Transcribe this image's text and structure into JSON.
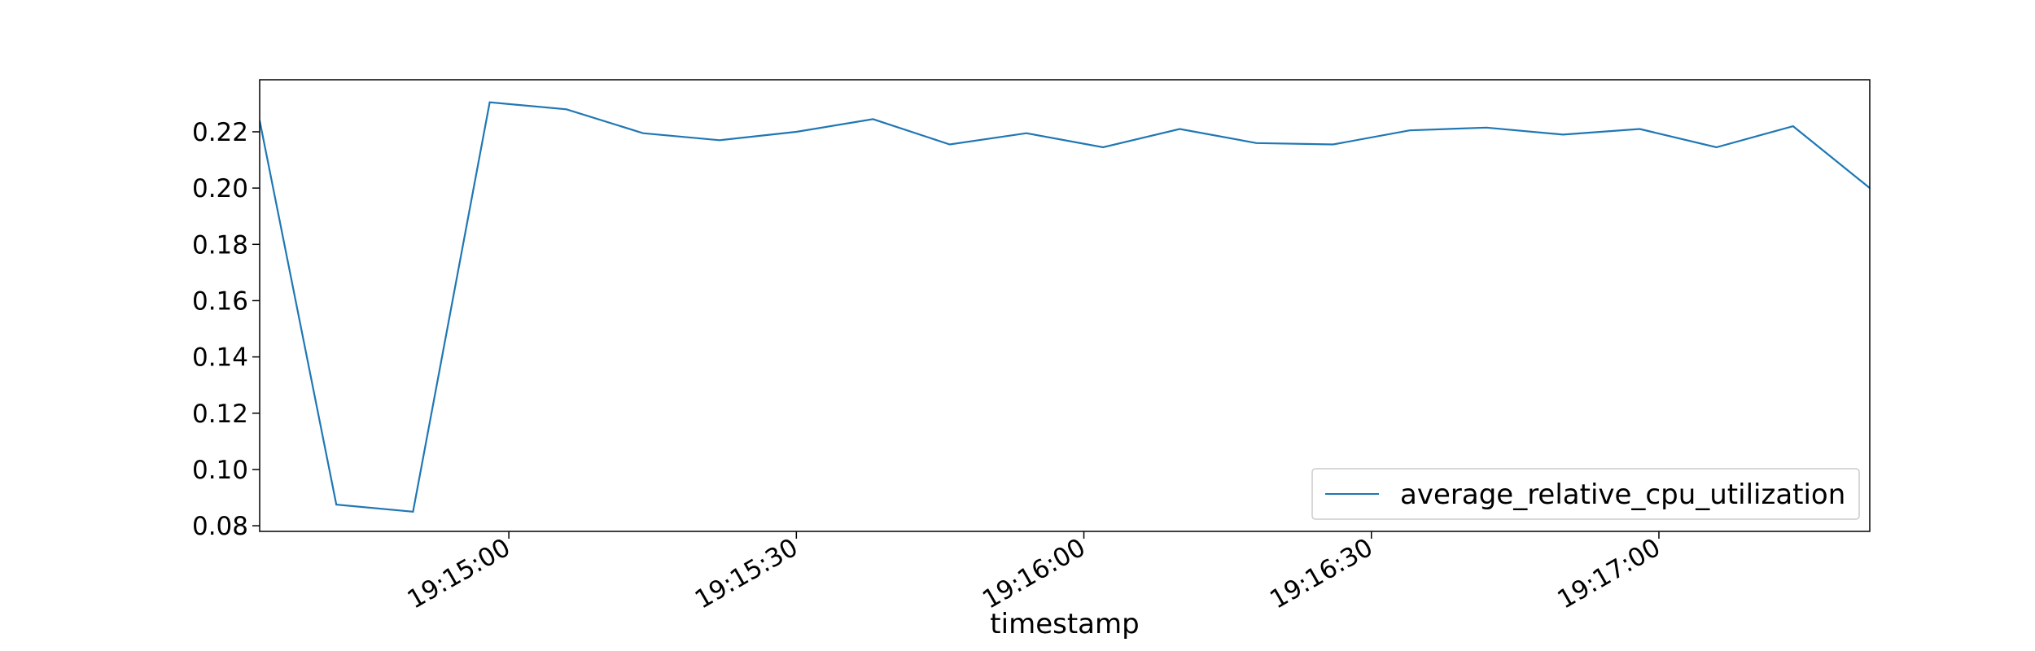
{
  "chart_data": {
    "type": "line",
    "xlabel": "timestamp",
    "ylabel": "",
    "ylim": [
      0.078,
      0.2385
    ],
    "xlim": [
      "19:14:34",
      "19:17:22"
    ],
    "x_ticks": [
      "19:15:00",
      "19:15:30",
      "19:16:00",
      "19:16:30",
      "19:17:00"
    ],
    "y_ticks": [
      0.08,
      0.1,
      0.12,
      0.14,
      0.16,
      0.18,
      0.2,
      0.22
    ],
    "y_tick_labels": [
      "0.08",
      "0.10",
      "0.12",
      "0.14",
      "0.16",
      "0.18",
      "0.20",
      "0.22"
    ],
    "grid": false,
    "legend_position": "lower-right",
    "series": [
      {
        "name": "average_relative_cpu_utilization",
        "color": "#1f77b4",
        "x": [
          "19:14:34",
          "19:14:42",
          "19:14:50",
          "19:14:58",
          "19:15:06",
          "19:15:14",
          "19:15:22",
          "19:15:30",
          "19:15:38",
          "19:15:46",
          "19:15:54",
          "19:16:02",
          "19:16:10",
          "19:16:18",
          "19:16:26",
          "19:16:34",
          "19:16:42",
          "19:16:50",
          "19:16:58",
          "19:17:06",
          "19:17:14",
          "19:17:22"
        ],
        "y": [
          0.224,
          0.0875,
          0.085,
          0.2305,
          0.228,
          0.2195,
          0.217,
          0.22,
          0.2245,
          0.2155,
          0.2195,
          0.2145,
          0.221,
          0.216,
          0.2155,
          0.2205,
          0.2215,
          0.219,
          0.221,
          0.2145,
          0.222,
          0.2
        ]
      }
    ]
  }
}
